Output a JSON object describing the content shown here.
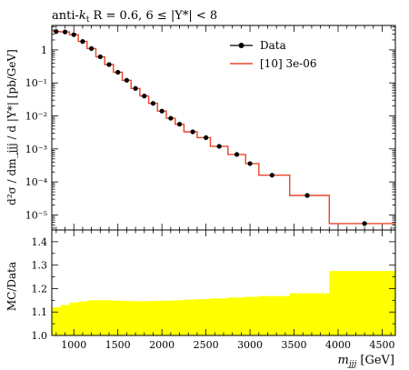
{
  "chart_data": [
    {
      "type": "line",
      "title": "anti-k_t R = 0.6, 6 ≤ |Y*| < 8",
      "title_parts": {
        "main": "anti-",
        "k": "k",
        "t": "t",
        "rest": " R = 0.6, 6 ≤ |Y*| < 8"
      },
      "ylabel": "d²σ/dm_jjj/d|Y*| [pb/GeV]",
      "ylabel_text": "d²σ / dm_jjj / d |Y*| [pb/GeV]",
      "yscale": "log",
      "ylim": [
        3.5e-06,
        5.5
      ],
      "xlim": [
        750,
        4650
      ],
      "y_ticks": [
        1e-05,
        0.0001,
        0.001,
        0.01,
        0.1,
        1
      ],
      "y_tick_labels": [
        "10⁻⁵",
        "10⁻⁴",
        "10⁻³",
        "10⁻²",
        "10⁻¹",
        "1"
      ],
      "legend_position": "top-right",
      "series": [
        {
          "name": "Data",
          "style": "points",
          "color": "#000000",
          "x": [
            800,
            900,
            1000,
            1100,
            1200,
            1300,
            1400,
            1500,
            1600,
            1700,
            1800,
            1900,
            2000,
            2100,
            2200,
            2350,
            2500,
            2650,
            2850,
            3000,
            3250,
            3650,
            4300
          ],
          "y": [
            3.6,
            3.5,
            2.9,
            1.8,
            1.1,
            0.62,
            0.36,
            0.21,
            0.12,
            0.068,
            0.04,
            0.024,
            0.014,
            0.0085,
            0.0056,
            0.0033,
            0.0022,
            0.0012,
            0.00068,
            0.00036,
            0.00016,
            3.9e-05,
            5.5e-06
          ]
        },
        {
          "name": "[10] 3e-06",
          "style": "histogram",
          "color": "#e8462a",
          "edges": [
            750,
            850,
            950,
            1050,
            1150,
            1250,
            1350,
            1450,
            1550,
            1650,
            1750,
            1850,
            1950,
            2050,
            2150,
            2250,
            2400,
            2550,
            2750,
            2950,
            3100,
            3450,
            3900,
            4650
          ],
          "values": [
            3.6,
            3.5,
            2.9,
            1.8,
            1.1,
            0.62,
            0.36,
            0.21,
            0.12,
            0.068,
            0.04,
            0.024,
            0.014,
            0.0085,
            0.0056,
            0.0033,
            0.0022,
            0.0012,
            0.00068,
            0.00036,
            0.00016,
            3.9e-05,
            5.5e-06
          ]
        }
      ]
    },
    {
      "type": "area",
      "ylabel": "MC/Data",
      "xlabel": "m_jjj [GeV]",
      "xlabel_parts": {
        "m": "m",
        "sub": "jjj",
        "unit": " [GeV]"
      },
      "ylim": [
        1.0,
        1.45
      ],
      "xlim": [
        750,
        4650
      ],
      "x_ticks": [
        1000,
        1500,
        2000,
        2500,
        3000,
        3500,
        4000,
        4500
      ],
      "y_ticks": [
        1.0,
        1.1,
        1.2,
        1.3,
        1.4
      ],
      "band_color": "#ffff00",
      "band": {
        "edges": [
          750,
          850,
          950,
          1050,
          1150,
          1250,
          1350,
          1450,
          1550,
          1650,
          1750,
          1850,
          1950,
          2050,
          2150,
          2250,
          2400,
          2550,
          2750,
          2950,
          3100,
          3450,
          3900,
          4650
        ],
        "lower": [
          1.0,
          1.0,
          1.0,
          1.0,
          1.0,
          1.0,
          1.0,
          1.0,
          1.0,
          1.0,
          1.0,
          1.0,
          1.0,
          1.0,
          1.0,
          1.0,
          1.0,
          1.0,
          1.0,
          1.0,
          1.0,
          1.0,
          1.0
        ],
        "upper": [
          1.12,
          1.13,
          1.14,
          1.145,
          1.15,
          1.15,
          1.15,
          1.148,
          1.147,
          1.146,
          1.146,
          1.147,
          1.148,
          1.149,
          1.15,
          1.153,
          1.155,
          1.158,
          1.162,
          1.165,
          1.168,
          1.18,
          1.275
        ]
      }
    }
  ]
}
